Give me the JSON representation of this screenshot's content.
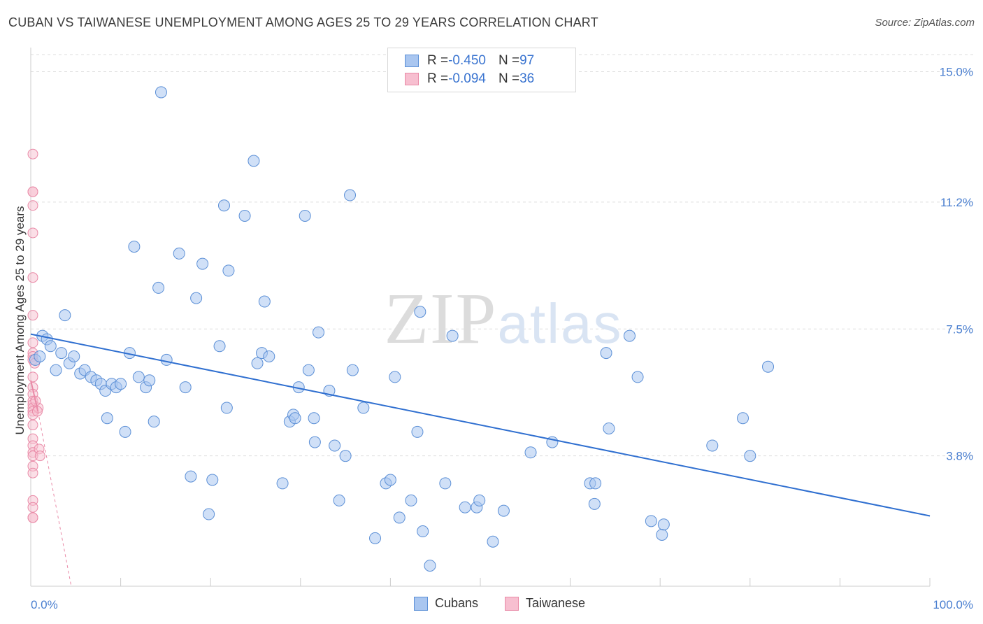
{
  "title": "CUBAN VS TAIWANESE UNEMPLOYMENT AMONG AGES 25 TO 29 YEARS CORRELATION CHART",
  "source": "Source: ZipAtlas.com",
  "watermark": "ZIPatlas",
  "legend": {
    "rows": [
      {
        "r_label": "R = ",
        "r_value": "-0.450",
        "n_label": "N = ",
        "n_value": "97",
        "color": "#a9c6f0",
        "border": "#5b8fd6"
      },
      {
        "r_label": "R = ",
        "r_value": "-0.094",
        "n_label": "N = ",
        "n_value": "36",
        "color": "#f7bfd0",
        "border": "#e98aa7"
      }
    ]
  },
  "bottom_legend": [
    {
      "label": "Cubans",
      "color": "#a9c6f0",
      "border": "#5b8fd6"
    },
    {
      "label": "Taiwanese",
      "color": "#f7bfd0",
      "border": "#e98aa7"
    }
  ],
  "chart_data": {
    "type": "scatter",
    "title": "CUBAN VS TAIWANESE UNEMPLOYMENT AMONG AGES 25 TO 29 YEARS CORRELATION CHART",
    "xlabel": "",
    "ylabel": "Unemployment Among Ages 25 to 29 years",
    "xlim": [
      0,
      100
    ],
    "ylim": [
      0,
      15.5
    ],
    "x_tick_labels": [
      "0.0%",
      "100.0%"
    ],
    "y_ticks": [
      3.8,
      7.5,
      11.2,
      15.0
    ],
    "y_tick_labels": [
      "3.8%",
      "7.5%",
      "11.2%",
      "15.0%"
    ],
    "grid": true,
    "colors": {
      "cubans": "#5b8fd6",
      "cubans_fill": "#a9c6f0",
      "taiwanese": "#e98aa7",
      "taiwanese_fill": "#f7bfd0",
      "trend_blue": "#2f6fd0",
      "trend_pink": "#e98aa7"
    },
    "series": [
      {
        "name": "Cubans",
        "points": [
          [
            0.5,
            6.6
          ],
          [
            1.0,
            6.7
          ],
          [
            1.3,
            7.3
          ],
          [
            1.8,
            7.2
          ],
          [
            2.2,
            7.0
          ],
          [
            2.8,
            6.3
          ],
          [
            3.4,
            6.8
          ],
          [
            3.8,
            7.9
          ],
          [
            4.3,
            6.5
          ],
          [
            4.8,
            6.7
          ],
          [
            5.5,
            6.2
          ],
          [
            6.0,
            6.3
          ],
          [
            6.7,
            6.1
          ],
          [
            7.3,
            6.0
          ],
          [
            7.8,
            5.9
          ],
          [
            8.3,
            5.7
          ],
          [
            8.5,
            4.9
          ],
          [
            9.0,
            5.9
          ],
          [
            9.5,
            5.8
          ],
          [
            10.0,
            5.9
          ],
          [
            10.5,
            4.5
          ],
          [
            11.0,
            6.8
          ],
          [
            11.5,
            9.9
          ],
          [
            12.0,
            6.1
          ],
          [
            12.8,
            5.8
          ],
          [
            13.2,
            6.0
          ],
          [
            13.7,
            4.8
          ],
          [
            14.2,
            8.7
          ],
          [
            14.5,
            14.4
          ],
          [
            15.1,
            6.6
          ],
          [
            16.5,
            9.7
          ],
          [
            17.2,
            5.8
          ],
          [
            17.8,
            3.2
          ],
          [
            18.4,
            8.4
          ],
          [
            19.1,
            9.4
          ],
          [
            19.8,
            2.1
          ],
          [
            20.2,
            3.1
          ],
          [
            21.0,
            7.0
          ],
          [
            21.5,
            11.1
          ],
          [
            21.8,
            5.2
          ],
          [
            22.0,
            9.2
          ],
          [
            23.8,
            10.8
          ],
          [
            25.2,
            6.5
          ],
          [
            24.8,
            12.4
          ],
          [
            25.7,
            6.8
          ],
          [
            26.0,
            8.3
          ],
          [
            26.5,
            6.7
          ],
          [
            28.0,
            3.0
          ],
          [
            28.8,
            4.8
          ],
          [
            29.2,
            5.0
          ],
          [
            29.4,
            4.9
          ],
          [
            29.8,
            5.8
          ],
          [
            30.5,
            10.8
          ],
          [
            30.9,
            6.3
          ],
          [
            31.5,
            4.9
          ],
          [
            32.0,
            7.4
          ],
          [
            31.6,
            4.2
          ],
          [
            33.2,
            5.7
          ],
          [
            33.8,
            4.1
          ],
          [
            34.3,
            2.5
          ],
          [
            35.0,
            3.8
          ],
          [
            35.5,
            11.4
          ],
          [
            35.8,
            6.3
          ],
          [
            37.0,
            5.2
          ],
          [
            38.3,
            1.4
          ],
          [
            39.5,
            3.0
          ],
          [
            40.0,
            3.1
          ],
          [
            40.5,
            6.1
          ],
          [
            41.0,
            2.0
          ],
          [
            42.3,
            2.5
          ],
          [
            43.0,
            4.5
          ],
          [
            43.3,
            8.0
          ],
          [
            43.6,
            1.6
          ],
          [
            44.4,
            0.6
          ],
          [
            46.1,
            3.0
          ],
          [
            46.9,
            7.3
          ],
          [
            48.3,
            2.3
          ],
          [
            49.6,
            2.3
          ],
          [
            49.9,
            2.5
          ],
          [
            51.4,
            1.3
          ],
          [
            52.6,
            2.2
          ],
          [
            55.6,
            3.9
          ],
          [
            58.0,
            4.2
          ],
          [
            62.2,
            3.0
          ],
          [
            62.7,
            2.4
          ],
          [
            62.8,
            3.0
          ],
          [
            64.0,
            6.8
          ],
          [
            64.3,
            4.6
          ],
          [
            66.6,
            7.3
          ],
          [
            67.5,
            6.1
          ],
          [
            69.0,
            1.9
          ],
          [
            70.2,
            1.5
          ],
          [
            70.4,
            1.8
          ],
          [
            75.8,
            4.1
          ],
          [
            79.2,
            4.9
          ],
          [
            80.0,
            3.8
          ],
          [
            82.0,
            6.4
          ]
        ],
        "trend": [
          [
            0,
            7.35
          ],
          [
            100,
            2.05
          ]
        ]
      },
      {
        "name": "Taiwanese",
        "points": [
          [
            0.0,
            12.6
          ],
          [
            0.0,
            11.5
          ],
          [
            0.0,
            11.5
          ],
          [
            0.0,
            11.1
          ],
          [
            0.0,
            10.3
          ],
          [
            0.0,
            9.0
          ],
          [
            0.0,
            7.9
          ],
          [
            0.0,
            7.1
          ],
          [
            0.0,
            6.8
          ],
          [
            0.0,
            6.7
          ],
          [
            0.0,
            6.6
          ],
          [
            0.0,
            6.1
          ],
          [
            0.0,
            5.8
          ],
          [
            0.0,
            5.6
          ],
          [
            0.0,
            5.4
          ],
          [
            0.0,
            5.3
          ],
          [
            0.0,
            5.2
          ],
          [
            0.0,
            5.1
          ],
          [
            0.0,
            5.0
          ],
          [
            0.0,
            4.7
          ],
          [
            0.0,
            4.3
          ],
          [
            0.0,
            4.1
          ],
          [
            0.0,
            3.9
          ],
          [
            0.0,
            3.8
          ],
          [
            0.0,
            3.5
          ],
          [
            0.0,
            3.3
          ],
          [
            0.0,
            2.5
          ],
          [
            0.0,
            2.3
          ],
          [
            0.0,
            2.0
          ],
          [
            0.0,
            2.0
          ],
          [
            0.6,
            5.2
          ],
          [
            0.7,
            4.0
          ],
          [
            0.8,
            3.8
          ],
          [
            0.5,
            5.1
          ],
          [
            0.3,
            5.4
          ],
          [
            0.2,
            6.5
          ]
        ],
        "trend": [
          [
            0,
            6.0
          ],
          [
            0.8,
            5.1
          ]
        ],
        "trend_dashed": [
          [
            0.8,
            5.1
          ],
          [
            4.5,
            0.0
          ]
        ]
      }
    ]
  }
}
